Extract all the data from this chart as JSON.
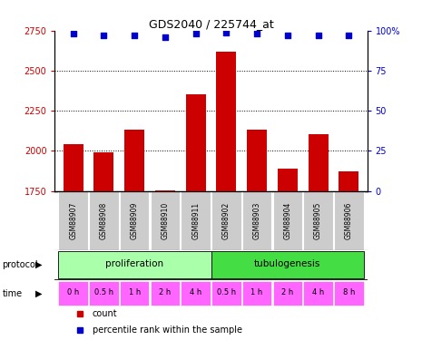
{
  "title": "GDS2040 / 225744_at",
  "samples": [
    "GSM88907",
    "GSM88908",
    "GSM88909",
    "GSM88910",
    "GSM88911",
    "GSM88902",
    "GSM88903",
    "GSM88904",
    "GSM88905",
    "GSM88906"
  ],
  "counts": [
    2040,
    1990,
    2130,
    1755,
    2355,
    2620,
    2130,
    1890,
    2105,
    1870
  ],
  "percentiles": [
    98,
    97,
    97,
    96,
    98,
    99,
    98,
    97,
    97,
    97
  ],
  "ylim_left": [
    1750,
    2750
  ],
  "yticks_left": [
    1750,
    2000,
    2250,
    2500,
    2750
  ],
  "ylim_right": [
    0,
    100
  ],
  "yticks_right": [
    0,
    25,
    50,
    75,
    100
  ],
  "bar_color": "#cc0000",
  "dot_color": "#0000cc",
  "protocol_groups": [
    {
      "label": "proliferation",
      "n_samples": 5,
      "color": "#aaffaa"
    },
    {
      "label": "tubulogenesis",
      "n_samples": 5,
      "color": "#44dd44"
    }
  ],
  "time_labels": [
    "0 h",
    "0.5 h",
    "1 h",
    "2 h",
    "4 h",
    "0.5 h",
    "1 h",
    "2 h",
    "4 h",
    "8 h"
  ],
  "time_color": "#ff66ff",
  "sample_bg_color": "#cccccc",
  "left_label_color": "#cc0000",
  "right_label_color": "#0000cc",
  "legend_items": [
    {
      "color": "#cc0000",
      "label": "count"
    },
    {
      "color": "#0000cc",
      "label": "percentile rank within the sample"
    }
  ],
  "xlabel_protocol": "protocol",
  "xlabel_time": "time",
  "gridline_yticks": [
    2000,
    2250,
    2500
  ],
  "bar_bottom": 1750
}
